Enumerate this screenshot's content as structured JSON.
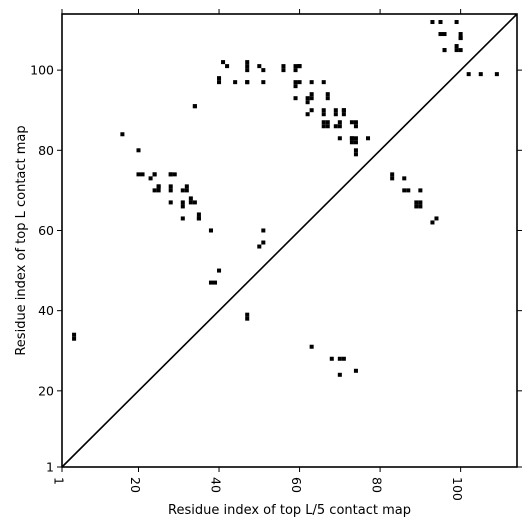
{
  "chart_data": {
    "type": "scatter",
    "title": "",
    "xlabel": "Residue index of top L/5 contact map",
    "ylabel": "Residue index of top L contact map",
    "xlim": [
      1,
      114
    ],
    "ylim": [
      1,
      114
    ],
    "xticks": [
      {
        "value": 1,
        "label": "1"
      },
      {
        "value": 20,
        "label": "20"
      },
      {
        "value": 40,
        "label": "40"
      },
      {
        "value": 60,
        "label": "60"
      },
      {
        "value": 80,
        "label": "80"
      },
      {
        "value": 100,
        "label": "100"
      }
    ],
    "yticks": [
      {
        "value": 1,
        "label": "1"
      },
      {
        "value": 20,
        "label": "20"
      },
      {
        "value": 40,
        "label": "40"
      },
      {
        "value": 60,
        "label": "60"
      },
      {
        "value": 80,
        "label": "80"
      },
      {
        "value": 100,
        "label": "100"
      }
    ],
    "xtick_rotation": 90,
    "grid": false,
    "diagonal_line": true,
    "marker_color": "#000000",
    "series": [
      {
        "values_note": "",
        "x_upper": [
          4,
          4,
          16,
          20,
          20,
          21,
          23,
          24,
          24,
          24,
          25,
          25,
          25,
          28,
          28,
          28,
          28,
          28,
          29,
          31,
          31,
          31,
          31,
          32,
          32,
          33,
          33,
          34,
          34,
          34,
          35,
          35,
          35,
          38,
          38,
          38,
          39,
          40,
          40,
          40,
          41,
          42,
          44,
          47,
          47,
          47,
          47,
          47,
          50,
          50,
          51,
          51,
          51,
          51,
          56,
          56,
          59,
          59,
          59,
          59,
          59,
          60,
          60,
          60,
          62,
          62,
          62,
          63,
          63,
          63,
          63,
          66,
          66,
          66,
          66,
          66,
          67,
          67,
          67,
          67,
          69,
          69,
          69,
          70,
          70,
          70,
          71,
          71,
          71,
          73,
          73,
          73,
          73,
          74,
          74,
          74,
          74,
          74,
          74,
          77,
          83,
          83,
          86,
          86,
          87,
          89,
          89,
          90,
          90,
          90,
          93,
          94,
          93,
          95,
          96,
          95,
          96,
          96,
          99,
          100,
          100,
          99,
          99,
          100,
          100,
          102,
          105,
          109
        ],
        "y_upper": [
          33,
          34,
          84,
          74,
          80,
          74,
          73,
          74,
          74,
          70,
          71,
          70,
          71,
          70,
          74,
          74,
          71,
          67,
          74,
          67,
          66,
          70,
          63,
          70,
          71,
          67,
          68,
          91,
          91,
          67,
          63,
          63,
          64,
          60,
          60,
          47,
          47,
          50,
          97,
          98,
          102,
          101,
          97,
          97,
          97,
          101,
          102,
          100,
          101,
          56,
          57,
          60,
          97,
          100,
          101,
          100,
          93,
          96,
          101,
          100,
          97,
          97,
          101,
          101,
          92,
          89,
          93,
          93,
          94,
          90,
          97,
          97,
          86,
          87,
          89,
          90,
          93,
          94,
          86,
          87,
          89,
          90,
          86,
          83,
          86,
          87,
          89,
          90,
          90,
          83,
          87,
          82,
          83,
          79,
          86,
          87,
          82,
          83,
          80,
          83,
          73,
          74,
          70,
          73,
          70,
          66,
          67,
          70,
          66,
          67,
          62,
          63,
          112,
          112,
          109,
          109,
          105,
          105,
          106,
          108,
          109,
          112,
          105,
          105,
          108,
          99,
          99,
          99
        ]
      },
      {
        "x_lower": [
          47,
          47,
          63,
          68,
          70,
          71,
          70,
          74
        ],
        "y_lower": [
          38,
          39,
          31,
          28,
          28,
          28,
          24,
          25
        ]
      }
    ]
  }
}
